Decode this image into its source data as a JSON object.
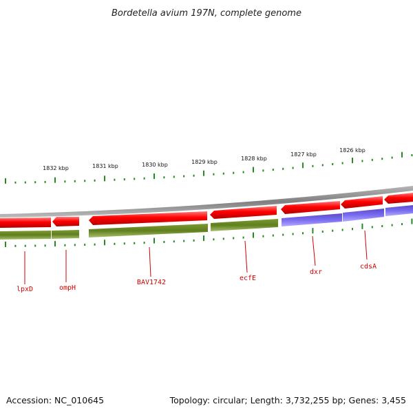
{
  "title": "Bordetella avium 197N, complete genome",
  "footer": {
    "accession": "Accession: NC_010645",
    "summary": "Topology: circular; Length: 3,732,255 bp; Genes: 3,455"
  },
  "scale_labels": [
    "1832 kbp",
    "1831 kbp",
    "1830 kbp",
    "1829 kbp",
    "1828 kbp",
    "1827 kbp",
    "1826 kbp"
  ],
  "gene_labels": [
    "lpxD",
    "ompH",
    "BAV1742",
    "ecfE",
    "dxr",
    "cdsA"
  ],
  "colors": {
    "forward_strand": "#ff0000",
    "reverse_strand": "#6b8e23",
    "reverse_strand_alt": "#7b68ee",
    "backbone": "#8c8c8c",
    "tick": "#228b22",
    "label": "#cc0000"
  }
}
